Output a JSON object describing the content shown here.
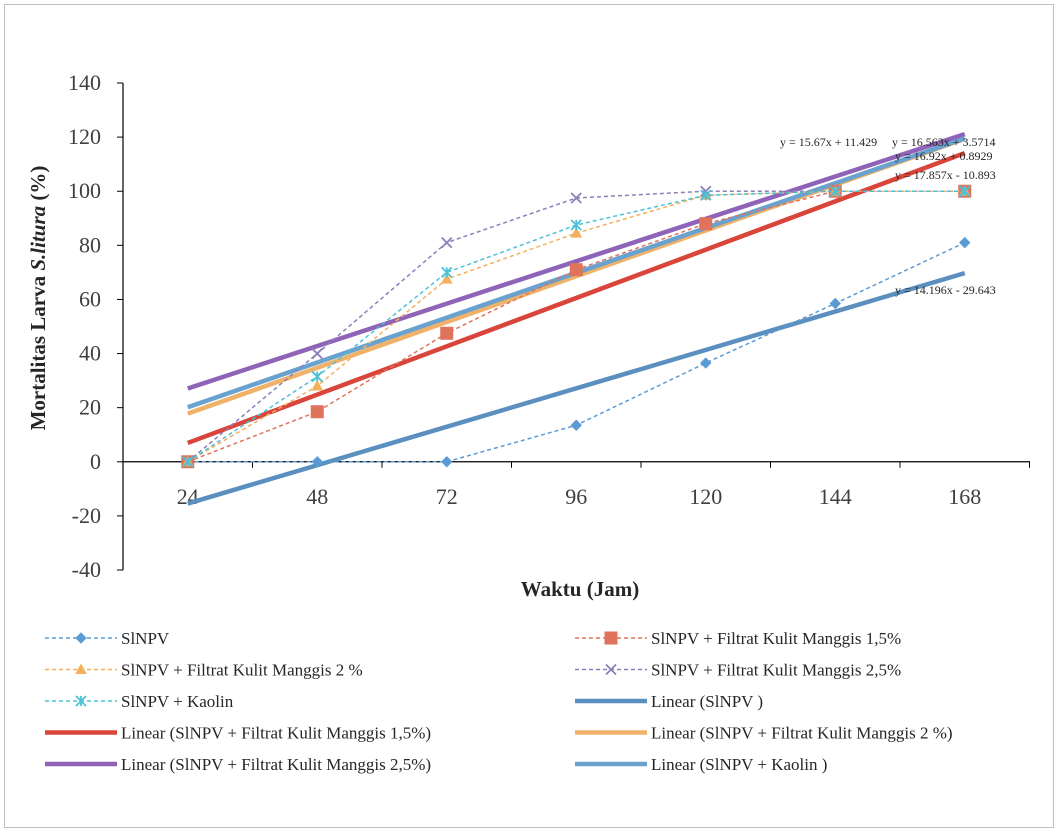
{
  "chart_data": {
    "type": "line",
    "title": "",
    "xlabel": "Waktu (Jam)",
    "ylabel_parts": [
      "Mortalitas Larva ",
      "S.litura",
      " (%)"
    ],
    "x": [
      "24",
      "48",
      "72",
      "96",
      "120",
      "144",
      "168"
    ],
    "ylim": [
      -40,
      140
    ],
    "yticks": [
      "-40",
      "-20",
      "0",
      "20",
      "40",
      "60",
      "80",
      "100",
      "120",
      "140"
    ],
    "grid": false,
    "legend_position": "bottom",
    "series": [
      {
        "name": "SlNPV",
        "color": "#5b9bd5",
        "marker": "diamond",
        "values": [
          0,
          0,
          0,
          13.5,
          36.5,
          58.5,
          81
        ]
      },
      {
        "name": "SlNPV + Filtrat Kulit Manggis 1,5%",
        "color": "#e0735c",
        "marker": "square",
        "values": [
          0,
          18.5,
          47.5,
          71,
          88,
          100,
          100
        ]
      },
      {
        "name": "SlNPV + Filtrat Kulit Manggis 2 %",
        "color": "#f4b05d",
        "marker": "triangle",
        "values": [
          0,
          28,
          67.5,
          84.5,
          98.5,
          100,
          100
        ]
      },
      {
        "name": "SlNPV + Filtrat Kulit Manggis 2,5%",
        "color": "#8c7fb8",
        "marker": "x",
        "values": [
          0,
          40,
          81,
          97.5,
          100,
          100,
          100
        ]
      },
      {
        "name": "SlNPV + Kaolin",
        "color": "#4bc1d6",
        "marker": "star",
        "values": [
          0,
          31.5,
          70,
          87.5,
          98.5,
          100,
          100
        ]
      }
    ],
    "trendlines": [
      {
        "name": "Linear (SlNPV )",
        "color": "#5b8fbf",
        "slope": 14.196,
        "intercept": -29.643,
        "equation": "y = 14.196x - 29.643"
      },
      {
        "name": "Linear (SlNPV + Filtrat Kulit Manggis 1,5%)",
        "color": "#d9453a",
        "slope": 17.857,
        "intercept": -10.893,
        "equation": "y = 17.857x - 10.893"
      },
      {
        "name": "Linear (SlNPV + Filtrat Kulit Manggis 2 %)",
        "color": "#f0b268",
        "slope": 16.92,
        "intercept": 0.8929,
        "equation": "y = 16.92x + 0.8929"
      },
      {
        "name": "Linear (SlNPV + Filtrat Kulit Manggis 2,5%)",
        "color": "#8e63b8",
        "slope": 15.67,
        "intercept": 11.429,
        "equation": "y = 15.67x + 11.429"
      },
      {
        "name": "Linear (SlNPV + Kaolin )",
        "color": "#6aa2cf",
        "slope": 16.563,
        "intercept": 3.5714,
        "equation": "y = 16.563x + 3.5714"
      }
    ],
    "legend_order": [
      {
        "kind": "series",
        "index": 0
      },
      {
        "kind": "series",
        "index": 1
      },
      {
        "kind": "series",
        "index": 2
      },
      {
        "kind": "series",
        "index": 3
      },
      {
        "kind": "series",
        "index": 4
      },
      {
        "kind": "trend",
        "index": 0
      },
      {
        "kind": "trend",
        "index": 1
      },
      {
        "kind": "trend",
        "index": 2
      },
      {
        "kind": "trend",
        "index": 3
      },
      {
        "kind": "trend",
        "index": 4
      }
    ]
  }
}
